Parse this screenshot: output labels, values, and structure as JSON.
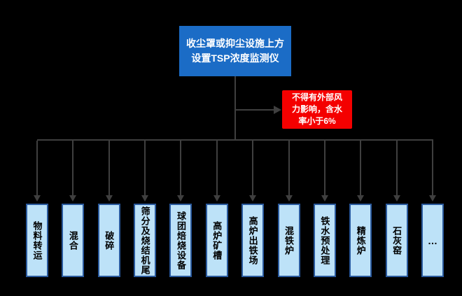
{
  "diagram": {
    "root_box": {
      "text": "收尘罩或抑尘设施上方设置TSP浓度监测仪",
      "lines": [
        "收尘罩或抑尘设施上方",
        "设置TSP浓度监测仪"
      ],
      "bg_color": "#1B6CC6",
      "text_color": "#FFFFFF"
    },
    "note_box": {
      "text": "不得有外部风力影响，含水率小于6%",
      "lines": [
        "不得有外部风",
        "力影响，含水",
        "率小于6%"
      ],
      "bg_color": "#F40000",
      "text_color": "#FFFFFF"
    },
    "processes": [
      {
        "label": "物料转运"
      },
      {
        "label": "混合"
      },
      {
        "label": "破碎"
      },
      {
        "label": "筛分及烧结机尾"
      },
      {
        "label": "球团焙烧设备"
      },
      {
        "label": "高炉矿槽"
      },
      {
        "label": "高炉出铁场"
      },
      {
        "label": "混铁炉"
      },
      {
        "label": "铁水预处理"
      },
      {
        "label": "精炼炉"
      },
      {
        "label": "石灰窑"
      },
      {
        "label": "…"
      }
    ],
    "colors": {
      "background": "#000000",
      "connector": "#3F3F3F",
      "process_fill": "#BDE2F8",
      "process_border": "#2A5A9E"
    }
  }
}
